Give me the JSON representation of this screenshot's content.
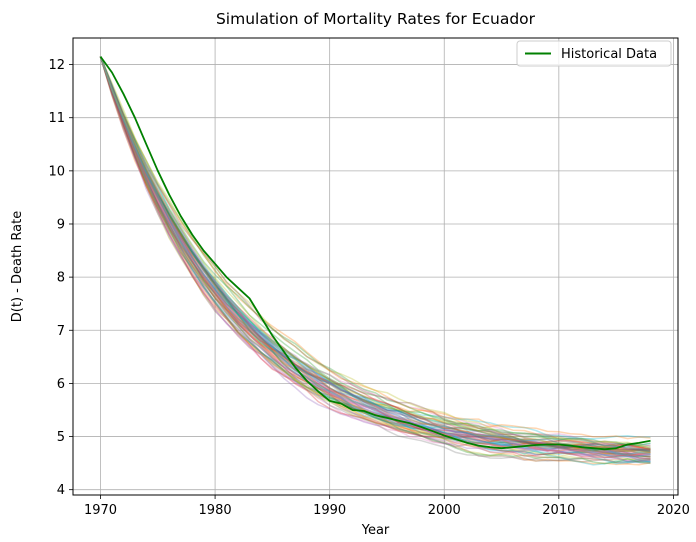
{
  "chart_data": {
    "type": "line",
    "title": "Simulation of Mortality Rates for Ecuador",
    "xlabel": "Year",
    "ylabel": "D(t) - Death Rate",
    "xlim": [
      1967.6,
      2020.4
    ],
    "ylim": [
      3.9,
      12.5
    ],
    "xticks": [
      1970,
      1980,
      1990,
      2000,
      2010,
      2020
    ],
    "yticks": [
      4,
      5,
      6,
      7,
      8,
      9,
      10,
      11,
      12
    ],
    "grid": true,
    "legend_position": "top-right",
    "series": [
      {
        "name": "Historical Data",
        "color": "#008000",
        "x": [
          1970,
          1971,
          1972,
          1973,
          1974,
          1975,
          1976,
          1977,
          1978,
          1979,
          1980,
          1981,
          1982,
          1983,
          1984,
          1985,
          1986,
          1987,
          1988,
          1989,
          1990,
          1991,
          1992,
          1993,
          1994,
          1995,
          1996,
          1997,
          1998,
          1999,
          2000,
          2001,
          2002,
          2003,
          2004,
          2005,
          2006,
          2007,
          2008,
          2009,
          2010,
          2011,
          2012,
          2013,
          2014,
          2015,
          2016,
          2017,
          2018
        ],
        "y": [
          12.15,
          11.85,
          11.45,
          11.0,
          10.5,
          10.0,
          9.55,
          9.15,
          8.8,
          8.5,
          8.25,
          8.0,
          7.8,
          7.6,
          7.25,
          6.9,
          6.6,
          6.3,
          6.05,
          5.85,
          5.67,
          5.62,
          5.5,
          5.48,
          5.4,
          5.35,
          5.3,
          5.25,
          5.18,
          5.1,
          5.02,
          4.95,
          4.88,
          4.83,
          4.8,
          4.78,
          4.8,
          4.82,
          4.84,
          4.85,
          4.85,
          4.83,
          4.8,
          4.78,
          4.76,
          4.78,
          4.85,
          4.88,
          4.92
        ]
      }
    ],
    "simulations": {
      "count": 60,
      "x_start": 1970,
      "x_end": 2018,
      "start_value": 12.15,
      "converged_value": 4.55,
      "palette": [
        "#1f77b4",
        "#ff7f0e",
        "#2ca02c",
        "#d62728",
        "#9467bd",
        "#8c564b",
        "#e377c2",
        "#7f7f7f",
        "#bcbd22",
        "#17becf"
      ]
    }
  }
}
